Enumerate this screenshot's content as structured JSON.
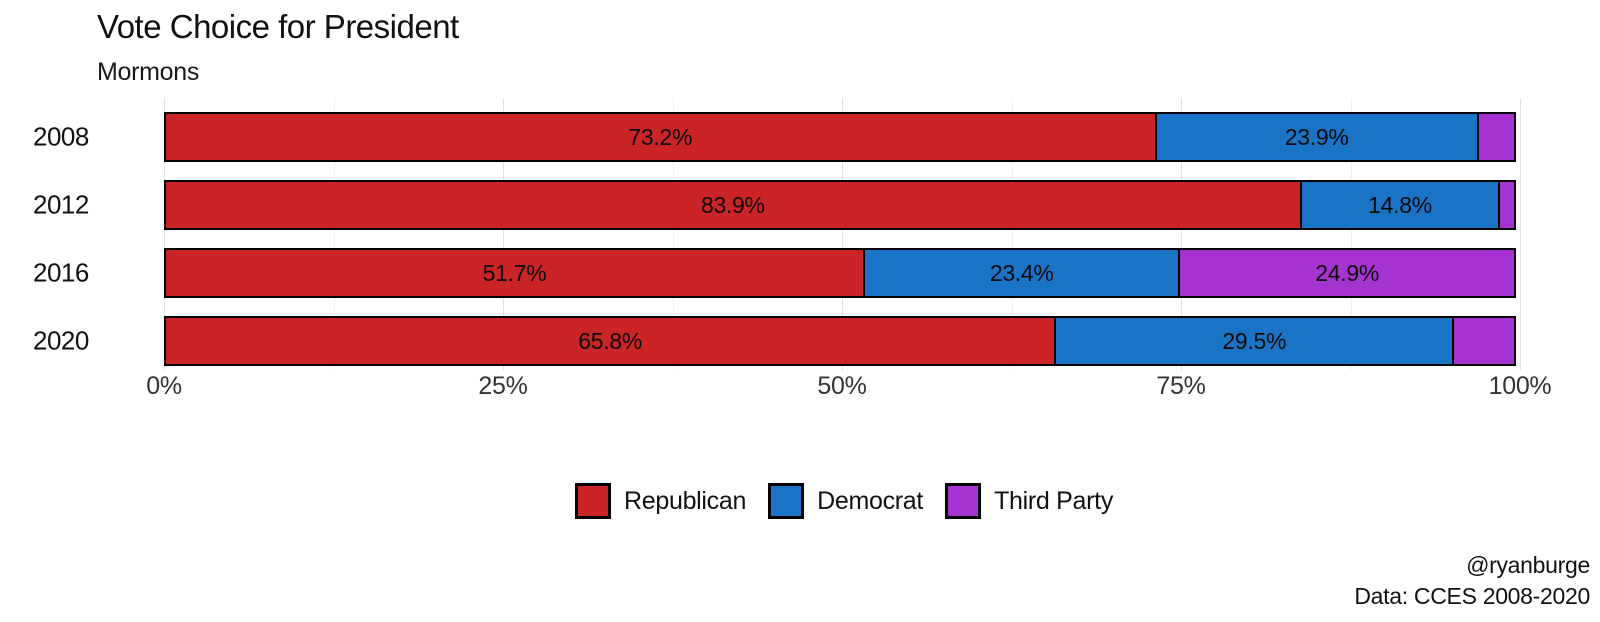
{
  "title": "Vote Choice for President",
  "subtitle": "Mormons",
  "caption": {
    "line1": "@ryanburge",
    "line2": "Data: CCES 2008-2020"
  },
  "colors": {
    "republican": "#cb2427",
    "democrat": "#1b73c6",
    "third_party": "#a433cf",
    "bar_border": "#000000",
    "grid_major": "#e2e2e2",
    "grid_minor": "#f0f0f0"
  },
  "chart_data": {
    "type": "bar",
    "orientation": "horizontal-stacked",
    "title": "Vote Choice for President",
    "subtitle": "Mormons",
    "categories": [
      "2008",
      "2012",
      "2016",
      "2020"
    ],
    "series": [
      {
        "name": "Republican",
        "color": "#cb2427",
        "values": [
          73.2,
          83.9,
          51.7,
          65.8
        ],
        "labels": [
          "73.2%",
          "83.9%",
          "51.7%",
          "65.8%"
        ]
      },
      {
        "name": "Democrat",
        "color": "#1b73c6",
        "values": [
          23.9,
          14.8,
          23.4,
          29.5
        ],
        "labels": [
          "23.9%",
          "14.8%",
          "23.4%",
          "29.5%"
        ]
      },
      {
        "name": "Third Party",
        "color": "#a433cf",
        "values": [
          2.9,
          1.3,
          24.9,
          4.7
        ],
        "labels": [
          "",
          "",
          "24.9%",
          ""
        ]
      }
    ],
    "xlim": [
      0,
      100
    ],
    "xticks": [
      "0%",
      "25%",
      "50%",
      "75%",
      "100%"
    ],
    "xtick_positions": [
      0,
      25,
      50,
      75,
      100
    ],
    "minor_grid_positions": [
      12.5,
      37.5,
      62.5,
      87.5
    ],
    "grid": true,
    "legend_position": "bottom"
  }
}
